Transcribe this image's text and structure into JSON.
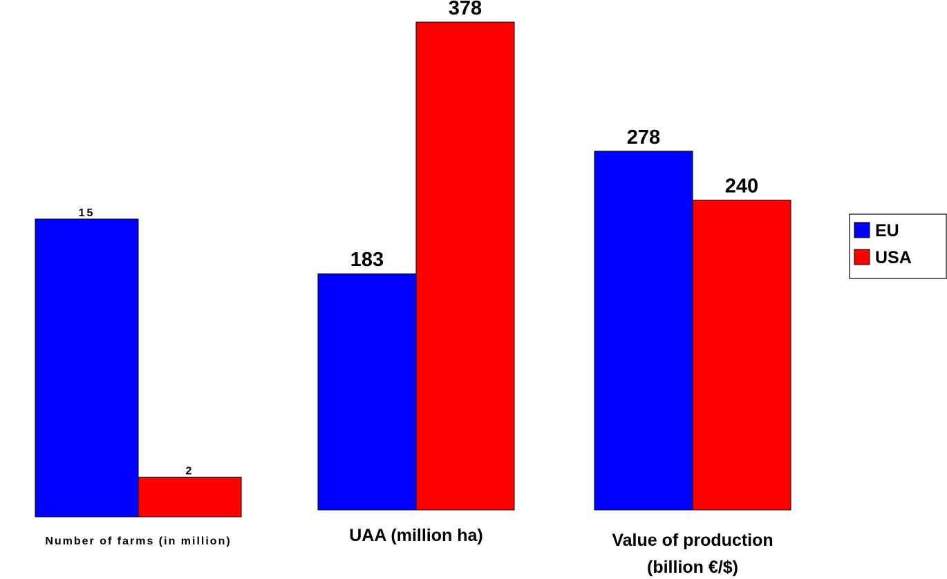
{
  "chart_data": [
    {
      "type": "bar",
      "categories": [
        "Number of farms (in million)"
      ],
      "series": [
        {
          "name": "EU",
          "values": [
            15
          ]
        },
        {
          "name": "USA",
          "values": [
            2
          ]
        }
      ],
      "xlabel": "Number of farms (in million)",
      "ylim": [
        0,
        15
      ]
    },
    {
      "type": "bar",
      "categories": [
        "UAA (million ha)"
      ],
      "series": [
        {
          "name": "EU",
          "values": [
            183
          ]
        },
        {
          "name": "USA",
          "values": [
            378
          ]
        }
      ],
      "xlabel": "UAA (million ha)",
      "ylim": [
        0,
        378
      ]
    },
    {
      "type": "bar",
      "categories": [
        "Value of production (billion €/$)"
      ],
      "series": [
        {
          "name": "EU",
          "values": [
            278
          ]
        },
        {
          "name": "USA",
          "values": [
            240
          ]
        }
      ],
      "xlabel_lines": [
        "Value of production",
        "(billion €/$)"
      ],
      "ylim": [
        0,
        378
      ]
    }
  ],
  "legend": {
    "position": "right",
    "items": [
      {
        "label": "EU",
        "color": "#0000ff"
      },
      {
        "label": "USA",
        "color": "#ff0000"
      }
    ]
  },
  "colors": {
    "EU": "#0000ff",
    "USA": "#ff0000",
    "outline": "#000000"
  }
}
